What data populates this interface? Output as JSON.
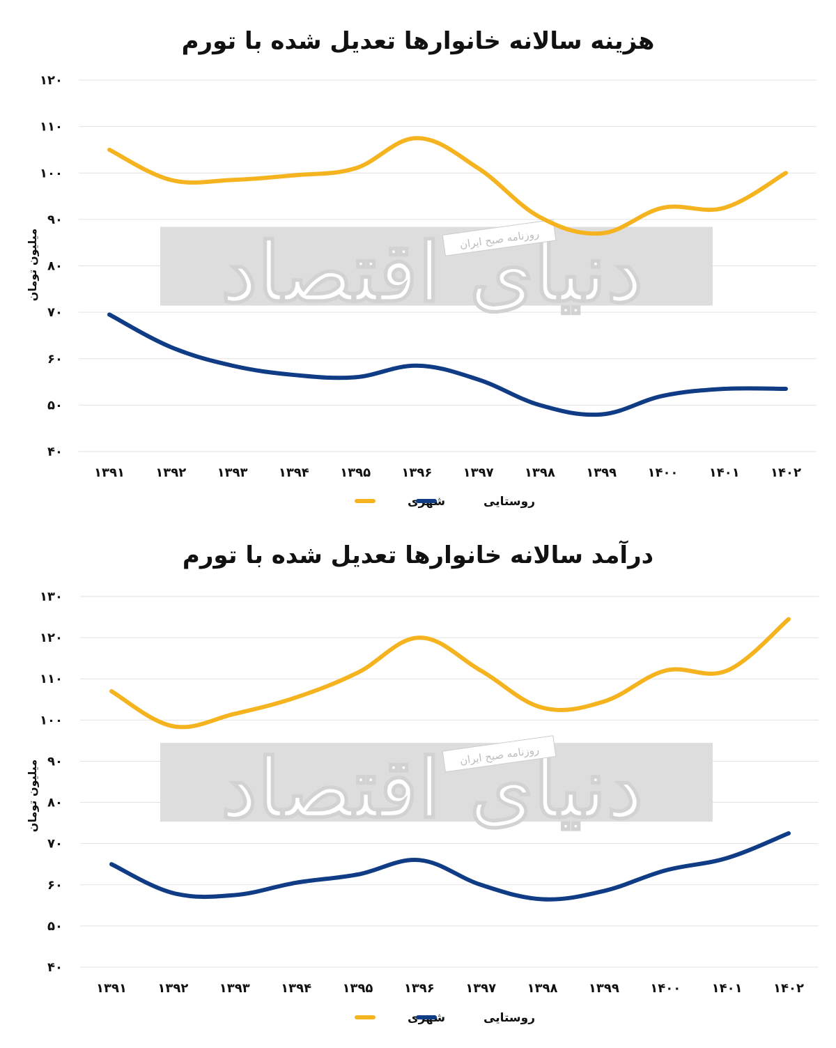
{
  "chart_data": [
    {
      "type": "line",
      "title": "هزینه سالانه خانوارها تعدیل شده با تورم",
      "ylabel": "میلیون تومان",
      "xlabel": "",
      "ylim": [
        40,
        120
      ],
      "yticks": [
        40,
        50,
        60,
        70,
        80,
        90,
        100,
        110,
        120
      ],
      "ytick_labels": [
        "۴۰",
        "۵۰",
        "۶۰",
        "۷۰",
        "۸۰",
        "۹۰",
        "۱۰۰",
        "۱۱۰",
        "۱۲۰"
      ],
      "categories": [
        "۱۳۹۱",
        "۱۳۹۲",
        "۱۳۹۳",
        "۱۳۹۴",
        "۱۳۹۵",
        "۱۳۹۶",
        "۱۳۹۷",
        "۱۳۹۸",
        "۱۳۹۹",
        "۱۴۰۰",
        "۱۴۰۱",
        "۱۴۰۲"
      ],
      "series": [
        {
          "name": "شهری",
          "color": "#F5B41F",
          "values": [
            105,
            98.5,
            98.5,
            99.5,
            101,
            107.5,
            101,
            90.5,
            87,
            92.5,
            92.5,
            100
          ]
        },
        {
          "name": "روستایی",
          "color": "#0F3C84",
          "values": [
            69.5,
            62.5,
            58.5,
            56.5,
            56,
            58.5,
            55.5,
            50,
            48,
            52,
            53.5,
            53.5
          ]
        }
      ],
      "legend": "bottom-center",
      "grid": true,
      "watermark": {
        "text": "دنیای اقتصاد",
        "subtext": "روزنامه صبح ایران"
      }
    },
    {
      "type": "line",
      "title": "درآمد سالانه خانوارها تعدیل شده با تورم",
      "ylabel": "میلیون تومان",
      "xlabel": "",
      "ylim": [
        40,
        130
      ],
      "yticks": [
        40,
        50,
        60,
        70,
        80,
        90,
        100,
        110,
        120,
        130
      ],
      "ytick_labels": [
        "۴۰",
        "۵۰",
        "۶۰",
        "۷۰",
        "۸۰",
        "۹۰",
        "۱۰۰",
        "۱۱۰",
        "۱۲۰",
        "۱۳۰"
      ],
      "categories": [
        "۱۳۹۱",
        "۱۳۹۲",
        "۱۳۹۳",
        "۱۳۹۴",
        "۱۳۹۵",
        "۱۳۹۶",
        "۱۳۹۷",
        "۱۳۹۸",
        "۱۳۹۹",
        "۱۴۰۰",
        "۱۴۰۱",
        "۱۴۰۲"
      ],
      "series": [
        {
          "name": "شهری",
          "color": "#F5B41F",
          "values": [
            107,
            98.5,
            101.5,
            105.5,
            111.5,
            120,
            112,
            103,
            104.5,
            112,
            112,
            124.5
          ]
        },
        {
          "name": "روستایی",
          "color": "#0F3C84",
          "values": [
            65,
            58,
            57.5,
            60.5,
            62.5,
            66,
            60,
            56.5,
            58.5,
            63.5,
            66.5,
            72.5
          ]
        }
      ],
      "legend": "bottom-center",
      "grid": true,
      "watermark": {
        "text": "دنیای اقتصاد",
        "subtext": "روزنامه صبح ایران"
      }
    }
  ]
}
